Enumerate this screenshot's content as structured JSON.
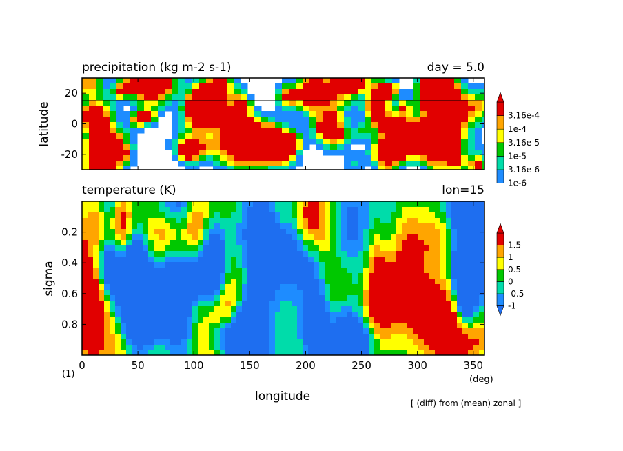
{
  "page": {
    "panel_label": "(1)",
    "footnote": "[ (diff) from (mean) zonal ]"
  },
  "chart_data": [
    {
      "type": "heatmap",
      "title": "precipitation (kg m-2 s-1)",
      "title_right": "day = 5.0",
      "xlabel": "",
      "ylabel": "latitude",
      "xlim": [
        0,
        360
      ],
      "ylim": [
        -30,
        30
      ],
      "yticks": [
        -20,
        0,
        20
      ],
      "reference_line_lat": 14,
      "colorbar": {
        "levels": [
          "1e-6",
          "3.16e-6",
          "1e-5",
          "3.16e-5",
          "1e-4",
          "3.16e-4"
        ],
        "colors": [
          "#ffffff",
          "#1e8cff",
          "#00dcaa",
          "#00c800",
          "#ffff00",
          "#ffa500",
          "#e10000"
        ]
      },
      "extend": "max"
    },
    {
      "type": "heatmap",
      "title": "temperature (K)",
      "title_right": "lon=15",
      "xlabel": "longitude",
      "xunit": "(deg)",
      "ylabel": "sigma",
      "xlim": [
        0,
        360
      ],
      "ylim": [
        1.0,
        0.0
      ],
      "xticks": [
        0,
        50,
        100,
        150,
        200,
        250,
        300,
        350
      ],
      "yticks": [
        "0.2",
        "0.4",
        "0.6",
        "0.8"
      ],
      "colorbar": {
        "levels": [
          "-1",
          "-0.5",
          "0",
          "0.5",
          "1",
          "1.5"
        ],
        "colors": [
          "#1e6ef0",
          "#1e8cff",
          "#00dcaa",
          "#00c800",
          "#ffff00",
          "#ffa500",
          "#e10000"
        ]
      },
      "extend": "both"
    }
  ]
}
